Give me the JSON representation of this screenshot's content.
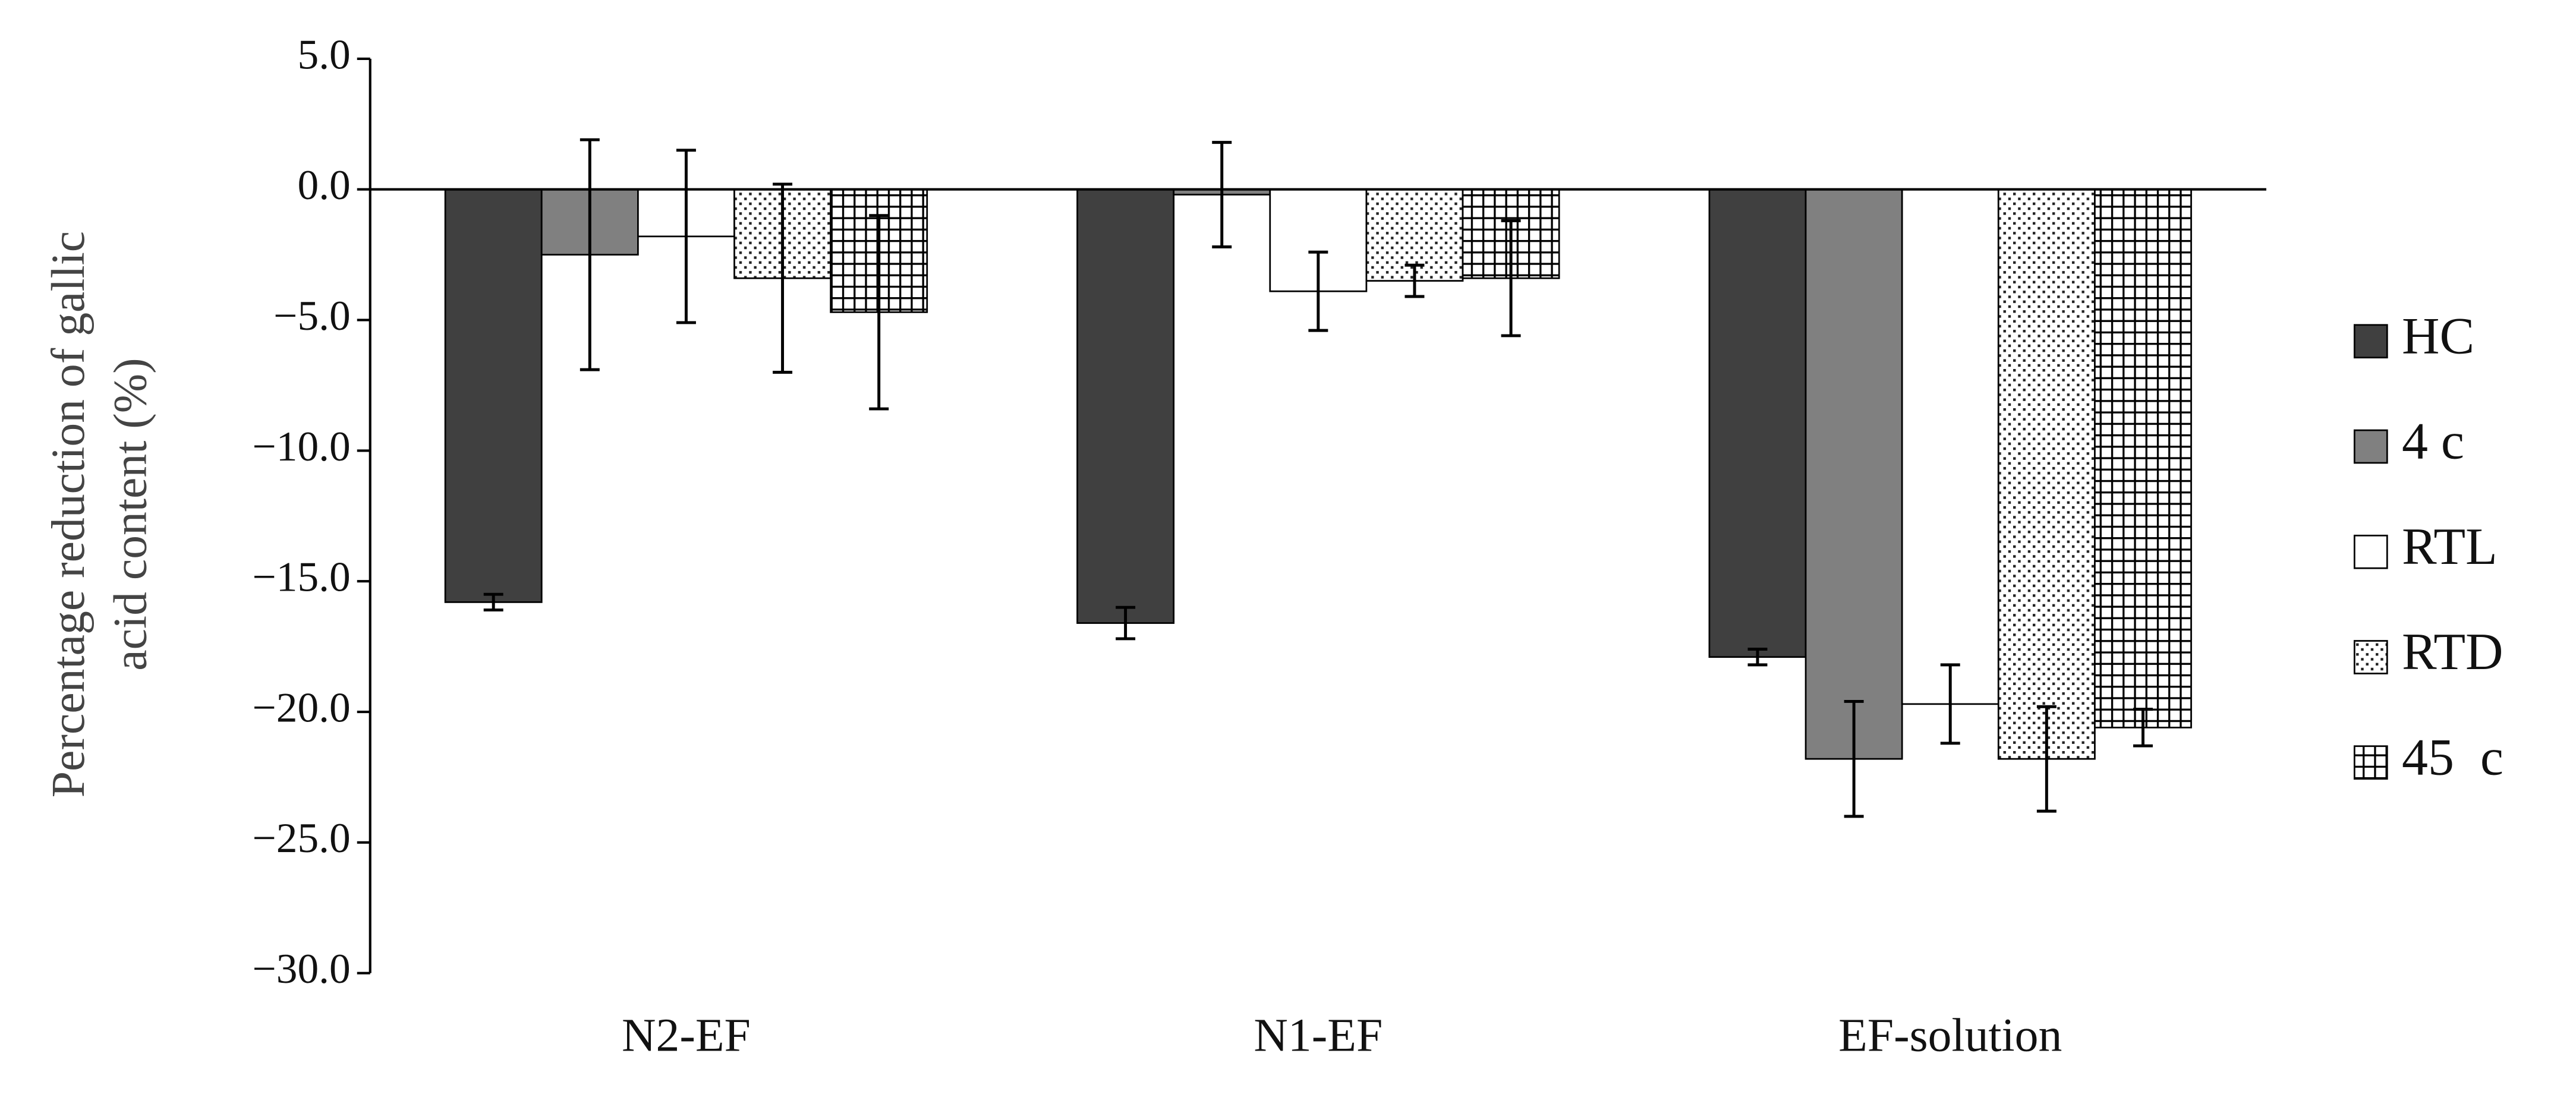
{
  "chart_data": {
    "type": "bar",
    "y_label_lines": [
      "Percentage reduction of gallic",
      "acid content (%)"
    ],
    "categories": [
      "N2-EF",
      "N1-EF",
      "EF-solution"
    ],
    "ylim": [
      -30,
      5
    ],
    "yticks": [
      {
        "value": 5,
        "label": "5.0"
      },
      {
        "value": 0,
        "label": "0.0"
      },
      {
        "value": -5,
        "label": "−5.0"
      },
      {
        "value": -10,
        "label": "−10.0"
      },
      {
        "value": -15,
        "label": "−15.0"
      },
      {
        "value": -20,
        "label": "−20.0"
      },
      {
        "value": -25,
        "label": "−25.0"
      },
      {
        "value": -30,
        "label": "−30.0"
      }
    ],
    "series": [
      {
        "name": "HC",
        "color": "#404040",
        "pattern": "solid",
        "values": [
          -15.8,
          -16.6,
          -17.9
        ],
        "errors": [
          0.3,
          0.6,
          0.3
        ]
      },
      {
        "name": "4 c",
        "color": "#808080",
        "pattern": "solid",
        "values": [
          -2.5,
          -0.2,
          -21.8
        ],
        "errors": [
          4.4,
          2.0,
          2.2
        ]
      },
      {
        "name": "RTL",
        "color": "#ffffff",
        "pattern": "solid",
        "values": [
          -1.8,
          -3.9,
          -19.7
        ],
        "errors": [
          3.3,
          1.5,
          1.5
        ]
      },
      {
        "name": "RTD",
        "color": "#ffffff",
        "pattern": "dots",
        "values": [
          -3.4,
          -3.5,
          -21.8
        ],
        "errors": [
          3.6,
          0.6,
          2.0
        ]
      },
      {
        "name": "45  c",
        "color": "#ffffff",
        "pattern": "grid",
        "values": [
          -4.7,
          -3.4,
          -20.6
        ],
        "errors": [
          3.7,
          2.2,
          0.7
        ]
      }
    ],
    "legend": "right"
  }
}
